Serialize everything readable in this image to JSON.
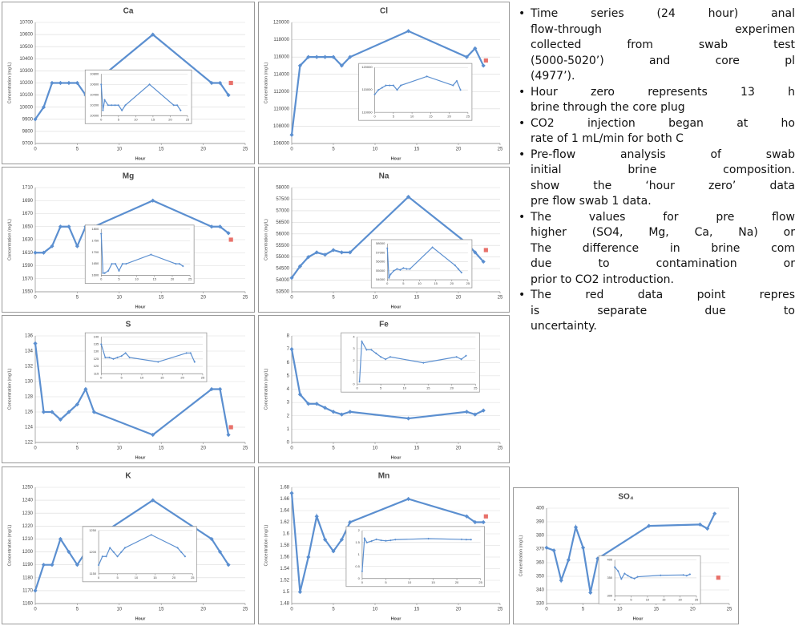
{
  "chart_data": [
    {
      "type": "line",
      "title": "Ca",
      "y_label": "Concentration (mg/L)",
      "x_label": "Hour",
      "xlim": [
        0,
        25
      ],
      "xticks": [
        0,
        5,
        10,
        15,
        20,
        25
      ],
      "ylim": [
        9700,
        10700
      ],
      "yticks": [
        9700,
        9800,
        9900,
        10000,
        10100,
        10200,
        10300,
        10400,
        10500,
        10600,
        10700
      ],
      "series": [
        {
          "color": "#5b8fd0",
          "x": [
            0,
            1,
            2,
            3,
            4,
            5,
            6,
            7,
            14,
            21,
            22,
            23
          ],
          "values": [
            9900,
            10000,
            10200,
            10200,
            10200,
            10200,
            10100,
            10200,
            10600,
            10200,
            10200,
            10100
          ]
        },
        {
          "color": "#e8716a",
          "x": [
            23.3
          ],
          "values": [
            10200
          ]
        }
      ],
      "inset": {
        "xlim": [
          0,
          25
        ],
        "xticks": [
          0,
          5,
          10,
          15,
          20,
          25
        ],
        "ylim": [
          10000,
          10800
        ],
        "yticks": [
          10000,
          10200,
          10400,
          10600,
          10800
        ],
        "series": [
          {
            "color": "#5b8fd0",
            "x": [
              0,
              0.5,
              1,
              2,
              3,
              4,
              5,
              6,
              7,
              14,
              21,
              22,
              23
            ],
            "values": [
              10600,
              10100,
              10300,
              10200,
              10200,
              10200,
              10200,
              10100,
              10200,
              10600,
              10200,
              10200,
              10100
            ]
          }
        ]
      }
    },
    {
      "type": "line",
      "title": "Cl",
      "y_label": "Concentration (mg/L)",
      "x_label": "Hour",
      "xlim": [
        0,
        25
      ],
      "xticks": [
        0,
        5,
        10,
        15,
        20,
        25
      ],
      "ylim": [
        106000,
        120000
      ],
      "yticks": [
        106000,
        108000,
        110000,
        112000,
        114000,
        116000,
        118000,
        120000
      ],
      "series": [
        {
          "color": "#5b8fd0",
          "x": [
            0,
            1,
            2,
            3,
            4,
            5,
            6,
            7,
            14,
            21,
            22,
            23
          ],
          "values": [
            107000,
            115000,
            116000,
            116000,
            116000,
            116000,
            115000,
            116000,
            119000,
            116000,
            117000,
            115000
          ]
        },
        {
          "color": "#e8716a",
          "x": [
            23.3
          ],
          "values": [
            115600
          ]
        }
      ],
      "inset": {
        "xlim": [
          0,
          25
        ],
        "xticks": [
          0,
          5,
          10,
          15,
          20,
          25
        ],
        "ylim": [
          110000,
          120000
        ],
        "yticks": [
          110000,
          115000,
          120000
        ],
        "series": [
          {
            "color": "#5b8fd0",
            "x": [
              0,
              1,
              2,
              3,
              4,
              5,
              6,
              7,
              14,
              21,
              22,
              23
            ],
            "values": [
              114000,
              115000,
              115500,
              116000,
              116000,
              116000,
              115000,
              116000,
              118000,
              116000,
              117000,
              115000
            ]
          }
        ]
      }
    },
    {
      "type": "line",
      "title": "Mg",
      "y_label": "Concentration (mg/L)",
      "x_label": "Hour",
      "xlim": [
        0,
        25
      ],
      "xticks": [
        0,
        5,
        10,
        15,
        20,
        25
      ],
      "ylim": [
        1550,
        1710
      ],
      "yticks": [
        1550,
        1570,
        1590,
        1610,
        1630,
        1650,
        1670,
        1690,
        1710
      ],
      "series": [
        {
          "color": "#5b8fd0",
          "x": [
            0,
            1,
            2,
            3,
            4,
            5,
            6,
            7,
            14,
            21,
            22,
            23
          ],
          "values": [
            1610,
            1610,
            1620,
            1650,
            1650,
            1620,
            1650,
            1650,
            1690,
            1650,
            1650,
            1640
          ]
        },
        {
          "color": "#e8716a",
          "x": [
            23.3
          ],
          "values": [
            1630
          ]
        }
      ],
      "inset": {
        "xlim": [
          0,
          25
        ],
        "xticks": [
          0,
          5,
          10,
          15,
          20,
          25
        ],
        "ylim": [
          1600,
          1800
        ],
        "yticks": [
          1600,
          1650,
          1700,
          1750,
          1800
        ],
        "series": [
          {
            "color": "#5b8fd0",
            "x": [
              0,
              0.5,
              1,
              2,
              3,
              4,
              5,
              6,
              7,
              14,
              21,
              22,
              23
            ],
            "values": [
              1780,
              1610,
              1610,
              1620,
              1650,
              1650,
              1620,
              1650,
              1650,
              1690,
              1650,
              1650,
              1640
            ]
          }
        ]
      }
    },
    {
      "type": "line",
      "title": "Na",
      "y_label": "Concentration (mg/L)",
      "x_label": "Hour",
      "xlim": [
        0,
        25
      ],
      "xticks": [
        0,
        5,
        10,
        15,
        20,
        25
      ],
      "ylim": [
        53500,
        58000
      ],
      "yticks": [
        53500,
        54000,
        54500,
        55000,
        55500,
        56000,
        56500,
        57000,
        57500,
        58000
      ],
      "series": [
        {
          "color": "#5b8fd0",
          "x": [
            0,
            1,
            2,
            3,
            4,
            5,
            6,
            7,
            14,
            21,
            22,
            23
          ],
          "values": [
            54100,
            54600,
            55000,
            55200,
            55100,
            55300,
            55200,
            55200,
            57600,
            55600,
            55200,
            54800
          ]
        },
        {
          "color": "#e8716a",
          "x": [
            23.3
          ],
          "values": [
            55300
          ]
        }
      ],
      "inset": {
        "xlim": [
          0,
          25
        ],
        "xticks": [
          0,
          5,
          10,
          15,
          20,
          25
        ],
        "ylim": [
          54000,
          58000
        ],
        "yticks": [
          54000,
          55000,
          56000,
          57000,
          58000
        ],
        "series": [
          {
            "color": "#5b8fd0",
            "x": [
              0,
              0.5,
              1,
              2,
              3,
              4,
              5,
              6,
              7,
              14,
              21,
              22,
              23
            ],
            "values": [
              57500,
              54200,
              54600,
              55000,
              55200,
              55100,
              55300,
              55200,
              55200,
              57600,
              55600,
              55200,
              54800
            ]
          }
        ]
      }
    },
    {
      "type": "line",
      "title": "S",
      "y_label": "Concentration (mg/L)",
      "x_label": "Hour",
      "xlim": [
        0,
        25
      ],
      "xticks": [
        0,
        5,
        10,
        15,
        20,
        25
      ],
      "ylim": [
        122,
        136
      ],
      "yticks": [
        122,
        124,
        126,
        128,
        130,
        132,
        134,
        136
      ],
      "series": [
        {
          "color": "#5b8fd0",
          "x": [
            0,
            1,
            2,
            3,
            4,
            5,
            6,
            7,
            14,
            21,
            22,
            23
          ],
          "values": [
            135,
            126,
            126,
            125,
            126,
            127,
            129,
            126,
            123,
            129,
            129,
            123
          ]
        },
        {
          "color": "#e8716a",
          "x": [
            23.3
          ],
          "values": [
            124
          ]
        }
      ],
      "inset": {
        "xlim": [
          0,
          25
        ],
        "xticks": [
          0,
          5,
          10,
          15,
          20,
          25
        ],
        "ylim": [
          115,
          140
        ],
        "yticks": [
          115,
          120,
          125,
          130,
          135,
          140
        ],
        "series": [
          {
            "color": "#5b8fd0",
            "x": [
              0,
              1,
              2,
              3,
              4,
              5,
              6,
              7,
              14,
              21,
              22,
              23
            ],
            "values": [
              135,
              126,
              126,
              125,
              126,
              127,
              129,
              126,
              123,
              129,
              129,
              123
            ]
          }
        ]
      }
    },
    {
      "type": "line",
      "title": "Fe",
      "y_label": "Concentration (mg/L)",
      "x_label": "Hour",
      "xlim": [
        0,
        25
      ],
      "xticks": [
        0,
        5,
        10,
        15,
        20,
        25
      ],
      "ylim": [
        0,
        8
      ],
      "yticks": [
        0,
        1,
        2,
        3,
        4,
        5,
        6,
        7,
        8
      ],
      "series": [
        {
          "color": "#5b8fd0",
          "x": [
            0,
            1,
            2,
            3,
            4,
            5,
            6,
            7,
            14,
            21,
            22,
            23
          ],
          "values": [
            7,
            3.6,
            2.9,
            2.9,
            2.6,
            2.3,
            2.1,
            2.3,
            1.8,
            2.3,
            2.1,
            2.4
          ]
        }
      ],
      "inset": {
        "xlim": [
          0,
          25
        ],
        "xticks": [
          0,
          5,
          10,
          15,
          20,
          25
        ],
        "ylim": [
          0,
          4
        ],
        "yticks": [
          0,
          1,
          2,
          3,
          4
        ],
        "series": [
          {
            "color": "#5b8fd0",
            "x": [
              0.5,
              1,
              2,
              3,
              4,
              5,
              6,
              7,
              14,
              21,
              22,
              23
            ],
            "values": [
              0.2,
              3.6,
              2.9,
              2.9,
              2.6,
              2.3,
              2.1,
              2.3,
              1.8,
              2.3,
              2.1,
              2.4
            ]
          }
        ]
      }
    },
    {
      "type": "line",
      "title": "K",
      "y_label": "Concentration (mg/L)",
      "x_label": "Hour",
      "xlim": [
        0,
        25
      ],
      "xticks": [
        0,
        5,
        10,
        15,
        20,
        25
      ],
      "ylim": [
        1160,
        1250
      ],
      "yticks": [
        1160,
        1170,
        1180,
        1190,
        1200,
        1210,
        1220,
        1230,
        1240,
        1250
      ],
      "series": [
        {
          "color": "#5b8fd0",
          "x": [
            0,
            1,
            2,
            3,
            4,
            5,
            6,
            7,
            14,
            21,
            22,
            23
          ],
          "values": [
            1170,
            1190,
            1190,
            1210,
            1200,
            1190,
            1200,
            1210,
            1240,
            1210,
            1200,
            1190
          ]
        }
      ],
      "inset": {
        "xlim": [
          0,
          25
        ],
        "xticks": [
          0,
          5,
          10,
          15,
          20,
          25
        ],
        "ylim": [
          1150,
          1250
        ],
        "yticks": [
          1150,
          1200,
          1250
        ],
        "series": [
          {
            "color": "#5b8fd0",
            "x": [
              0,
              1,
              2,
              3,
              4,
              5,
              6,
              7,
              14,
              21,
              22,
              23
            ],
            "values": [
              1170,
              1190,
              1190,
              1210,
              1200,
              1190,
              1200,
              1210,
              1240,
              1210,
              1200,
              1190
            ]
          }
        ]
      }
    },
    {
      "type": "line",
      "title": "Mn",
      "y_label": "Concentration (mg/L)",
      "x_label": "Hour",
      "xlim": [
        0,
        25
      ],
      "xticks": [
        0,
        5,
        10,
        15,
        20,
        25
      ],
      "ylim": [
        1.48,
        1.68
      ],
      "yticks": [
        1.48,
        1.5,
        1.52,
        1.54,
        1.56,
        1.58,
        1.6,
        1.62,
        1.64,
        1.66,
        1.68
      ],
      "series": [
        {
          "color": "#5b8fd0",
          "x": [
            0,
            1,
            2,
            3,
            4,
            5,
            6,
            7,
            14,
            21,
            22,
            23
          ],
          "values": [
            1.67,
            1.5,
            1.56,
            1.63,
            1.59,
            1.57,
            1.59,
            1.62,
            1.66,
            1.63,
            1.62,
            1.62
          ]
        },
        {
          "color": "#e8716a",
          "x": [
            23.3
          ],
          "values": [
            1.63
          ]
        }
      ],
      "inset": {
        "xlim": [
          0,
          25
        ],
        "xticks": [
          0,
          5,
          10,
          15,
          20,
          25
        ],
        "ylim": [
          0,
          2
        ],
        "yticks": [
          0,
          0.5,
          1,
          1.5,
          2
        ],
        "series": [
          {
            "color": "#5b8fd0",
            "x": [
              0,
              0.5,
              1,
              2,
              3,
              4,
              5,
              6,
              7,
              14,
              21,
              22,
              23
            ],
            "values": [
              0.3,
              1.67,
              1.5,
              1.56,
              1.63,
              1.59,
              1.57,
              1.59,
              1.62,
              1.66,
              1.63,
              1.62,
              1.62
            ]
          }
        ]
      }
    },
    {
      "type": "line",
      "title": "SO₄",
      "y_label": "Concentration (mg/L)",
      "x_label": "Hour",
      "xlim": [
        0,
        25
      ],
      "xticks": [
        0,
        5,
        10,
        15,
        20,
        25
      ],
      "ylim": [
        330,
        400
      ],
      "yticks": [
        330,
        340,
        350,
        360,
        370,
        380,
        390,
        400
      ],
      "series": [
        {
          "color": "#5b8fd0",
          "x": [
            0,
            1,
            2,
            3,
            4,
            5,
            6,
            7,
            14,
            21,
            22,
            23
          ],
          "values": [
            371,
            369,
            347,
            362,
            386,
            371,
            338,
            363,
            387,
            388,
            385,
            396
          ]
        },
        {
          "color": "#e8716a",
          "x": [
            23.5
          ],
          "values": [
            349
          ]
        }
      ],
      "inset": {
        "xlim": [
          0,
          25
        ],
        "xticks": [
          0,
          5,
          10,
          15,
          20,
          25
        ],
        "ylim": [
          300,
          400
        ],
        "yticks": [
          300,
          350,
          400
        ],
        "series": [
          {
            "color": "#5b8fd0",
            "x": [
              0,
              1,
              2,
              3,
              4,
              5,
              6,
              7,
              14,
              21,
              22,
              23
            ],
            "values": [
              380,
              369,
              347,
              362,
              356,
              351,
              348,
              353,
              357,
              358,
              356,
              360
            ]
          }
        ]
      }
    }
  ],
  "text": {
    "bullets": [
      [
        "Time series (24 hour) anal",
        "flow-through    experimen",
        "collected from swab test",
        "(5000-5020’) and core pl",
        "(4977’)."
      ],
      [
        "Hour zero represents 13 h",
        "brine through the core plug"
      ],
      [
        "CO2 injection began at ho",
        "rate of 1 mL/min for both C"
      ],
      [
        "Pre-flow analysis of swab",
        "initial brine composition.",
        "show the ‘hour zero’ data",
        "pre flow swab 1 data."
      ],
      [
        "The values for pre flow",
        "higher (SO4, Mg, Ca, Na) or",
        "The difference in brine com",
        "due to contamination or",
        "prior to CO2 introduction."
      ],
      [
        "The red data point repres",
        "is    separate    due    to",
        "uncertainty."
      ]
    ]
  }
}
